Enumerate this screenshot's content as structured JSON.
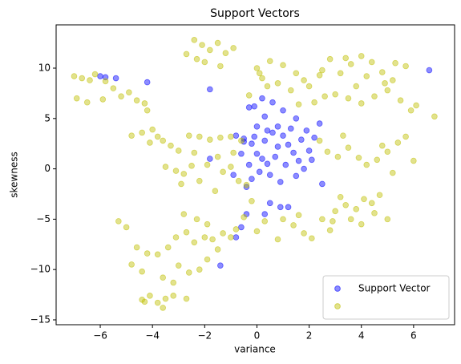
{
  "chart_data": {
    "type": "scatter",
    "title": "Support Vectors",
    "x_label": "variance",
    "y_label": "skewness",
    "xlim": [
      -7.69,
      7.57
    ],
    "ylim": [
      -15.48,
      14.3
    ],
    "xticks": [
      {
        "value": -6,
        "label": "−6"
      },
      {
        "value": -4,
        "label": "−4"
      },
      {
        "value": -2,
        "label": "−2"
      },
      0,
      2,
      4,
      6
    ],
    "yticks": [
      {
        "value": -15,
        "label": "−15"
      },
      {
        "value": -10,
        "label": "−10"
      },
      {
        "value": -5,
        "label": "−5"
      },
      0,
      5,
      10
    ],
    "legend": "lower right",
    "series": [
      {
        "name": "Support Vector",
        "color": "#0000ff",
        "x": [
          -6,
          -5.8,
          -5.4,
          -4.2,
          -1.8,
          6.6,
          -1.4,
          -0.8,
          -0.6,
          -0.4,
          0.3,
          0.5,
          0.9,
          1.2,
          -1.8,
          -0.8,
          -0.5,
          -0.2,
          -0.5,
          -0.1,
          0,
          0.2,
          0.4,
          0.1,
          -0.2,
          -0.4,
          -0.3,
          0.3,
          0.6,
          0.8,
          1,
          1.2,
          1.4,
          1.6,
          1.8,
          2,
          2.2,
          2.4,
          1.5,
          1,
          0.6,
          0.2,
          -0.1,
          0.3,
          0.8,
          1.1,
          0.5,
          0.9,
          1.7,
          1.9,
          0.7,
          -0.6,
          -0.3,
          2.5,
          1.3,
          0.4,
          0,
          -0.9,
          1.5,
          2.1
        ],
        "values": [
          9.2,
          9.1,
          9,
          8.6,
          7.9,
          9.8,
          -9.6,
          -6.8,
          -5.8,
          -4.5,
          -4.5,
          -3.4,
          -3.8,
          -3.8,
          1,
          3.3,
          3,
          2.5,
          2.7,
          3.2,
          1.5,
          1,
          0.5,
          -0.3,
          -1,
          -1.8,
          0.4,
          2.8,
          3.6,
          4.2,
          3.3,
          2.4,
          1.6,
          0.8,
          0,
          1.8,
          3.1,
          4.5,
          5,
          5.8,
          6.6,
          7,
          6.2,
          5.2,
          2.2,
          0.4,
          -0.6,
          -1.3,
          2.9,
          3.8,
          1.2,
          1.5,
          6.1,
          -1.5,
          4,
          3.8,
          4.2,
          -0.6,
          -0.7,
          0.9
        ]
      },
      {
        "color": "#bfbf00",
        "x": [
          -7,
          -6.7,
          -6.4,
          -6.2,
          -5.8,
          -5.5,
          -5.2,
          -4.9,
          -4.6,
          -6.9,
          -6.5,
          -5.9,
          -4.3,
          -4.2,
          -2.4,
          -2.1,
          -1.8,
          -1.5,
          -1.2,
          -0.9,
          -2.7,
          -2,
          -1.4,
          -2.3,
          0,
          0.5,
          1,
          1.5,
          0.2,
          0.8,
          1.3,
          1.8,
          2.5,
          2.8,
          3.2,
          3.6,
          4,
          4.4,
          4.8,
          5.3,
          5.7,
          3,
          3.5,
          4,
          4.5,
          5,
          5.5,
          5.9,
          2.2,
          2.6,
          1.6,
          2,
          3.8,
          4.9,
          5.2,
          0.4,
          -0.3,
          0.1,
          4.2,
          3.4,
          2.4,
          6.1,
          -4.8,
          -4.4,
          -4,
          -3.6,
          -3.3,
          -3,
          -2.6,
          -2.2,
          -1.8,
          -1.4,
          -1,
          -0.6,
          -4.1,
          -3.8,
          -3.5,
          -3.1,
          -2.8,
          -2.5,
          -2.2,
          -1.9,
          -1.6,
          -1.3,
          -1,
          -0.7,
          -0.4,
          -0.9,
          -1.5,
          -2.4,
          -2.9,
          2.7,
          3.1,
          3.5,
          3.9,
          4.2,
          4.6,
          5,
          5.4,
          5.7,
          5.2,
          6,
          3.3,
          4.8,
          2.4,
          3,
          3.4,
          3.8,
          4.1,
          4.4,
          4.7,
          3.6,
          4,
          4.5,
          5,
          3.2,
          2.9,
          1,
          1.4,
          1.8,
          2.1,
          2.5,
          0.8,
          1.6,
          0.3,
          0,
          2.8,
          -5.3,
          -5,
          -4.6,
          -4.2,
          -3.8,
          -3.4,
          -3.1,
          -2.7,
          -2.4,
          -2,
          -1.7,
          -1.3,
          -1,
          -2.8,
          -2.3,
          -1.9,
          -2.2,
          -2.6,
          -3,
          -1.5,
          -3.2,
          -3.6,
          -0.8,
          -0.5,
          -4.4,
          -4.1,
          -3.8,
          -3.5,
          -3.2,
          -2.7,
          -4.3,
          -3.6,
          -4.8,
          -4.4,
          6.8,
          -1.9,
          -0.2
        ],
        "values": [
          9.2,
          9,
          8.8,
          9.4,
          8.7,
          8,
          7.2,
          7.6,
          6.8,
          7,
          6.6,
          6.9,
          6.5,
          5.8,
          12.8,
          12.3,
          11.8,
          12.5,
          11.5,
          12,
          11.4,
          10.6,
          10.2,
          10.9,
          10,
          10.7,
          10.3,
          9.5,
          9,
          8.5,
          7.8,
          8.8,
          9.8,
          10.9,
          9.5,
          10.4,
          11.2,
          10.6,
          9.6,
          10.5,
          10.2,
          7.4,
          7,
          6.5,
          7.2,
          7.8,
          6.8,
          5.8,
          6.6,
          7.2,
          6.4,
          8.2,
          8.2,
          8.5,
          8.8,
          8.2,
          7.3,
          9.5,
          9.2,
          11,
          9.3,
          6.3,
          3.3,
          3.6,
          3.9,
          2.8,
          2.3,
          1.8,
          3.3,
          3.2,
          2.9,
          3.1,
          3.2,
          2.8,
          2.6,
          3.2,
          0.2,
          -0.2,
          -0.5,
          0.3,
          -1.2,
          0.4,
          -2.2,
          -0.3,
          0.2,
          -1.2,
          -1.6,
          1.6,
          1.2,
          1.6,
          -1.5,
          1.7,
          1.2,
          2.1,
          1.1,
          0.4,
          0.9,
          1.7,
          2.6,
          3.2,
          -0.4,
          0.8,
          3.3,
          2.3,
          2.8,
          -4.2,
          -3.6,
          -4,
          -3,
          -3.4,
          -2.6,
          -5,
          -5.5,
          -4.4,
          -5,
          -2.8,
          -5.2,
          -5,
          -5.6,
          -6.4,
          -6.9,
          -5,
          -7,
          -4.6,
          -5.2,
          -6.2,
          -6.1,
          -5.2,
          -5.8,
          -7.8,
          -8.4,
          -8.5,
          -7.8,
          -6.8,
          -6.3,
          -7.3,
          -6.8,
          -7,
          -6.4,
          -6.8,
          -4.5,
          -5,
          -9,
          -10,
          -10.3,
          -9.6,
          -8,
          -11.3,
          -10.8,
          -6,
          -4.8,
          -13,
          -12.6,
          -13.3,
          -12.9,
          -12.6,
          -12.9,
          -13.2,
          -13.8,
          -9.5,
          -10.2,
          5.2,
          -5.5,
          -3.2
        ]
      }
    ]
  }
}
